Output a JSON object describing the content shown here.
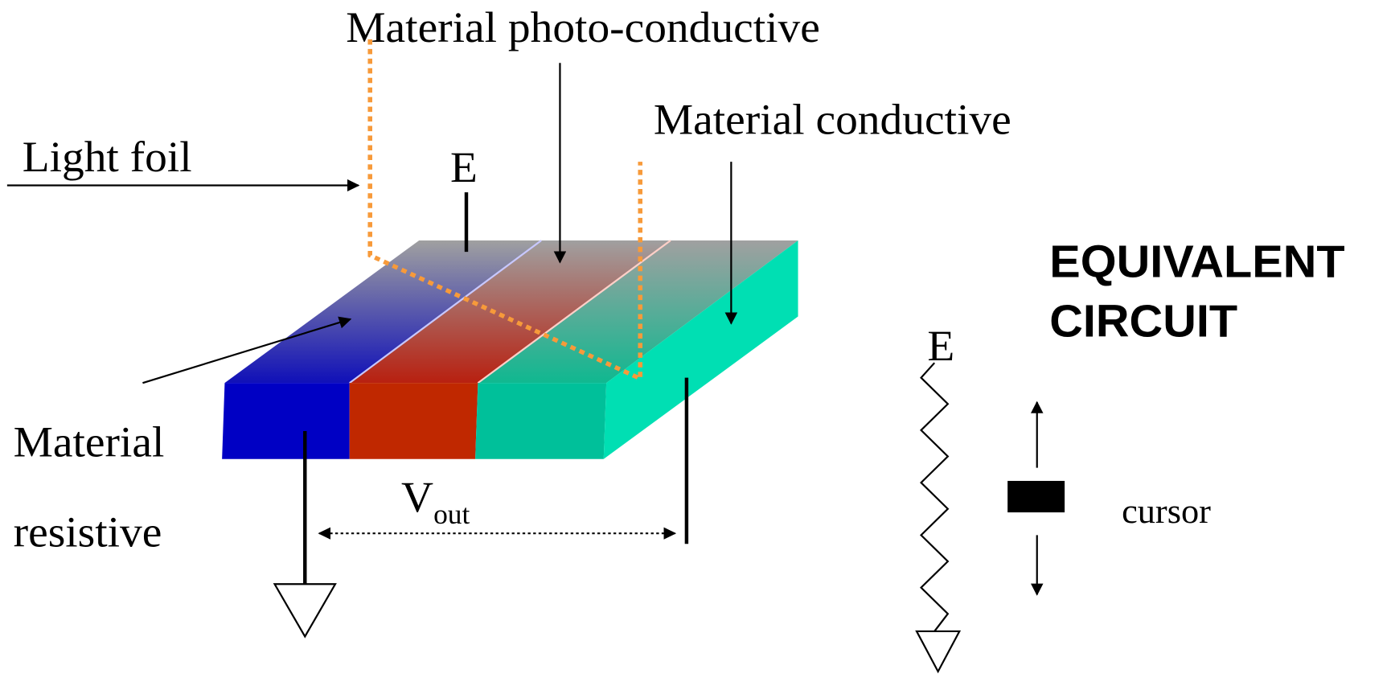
{
  "labels": {
    "photo_conductive": "Material photo-conductive",
    "conductive": "Material conductive",
    "light_foil": "Light foil",
    "e_top": "E",
    "resistive_1": "Material",
    "resistive_2": "resistive",
    "vout": {
      "main": "V",
      "sub": "out"
    },
    "equivalent_1": "EQUIVALENT",
    "equivalent_2": "CIRCUIT",
    "e_circuit": "E",
    "cursor": "cursor"
  }
}
